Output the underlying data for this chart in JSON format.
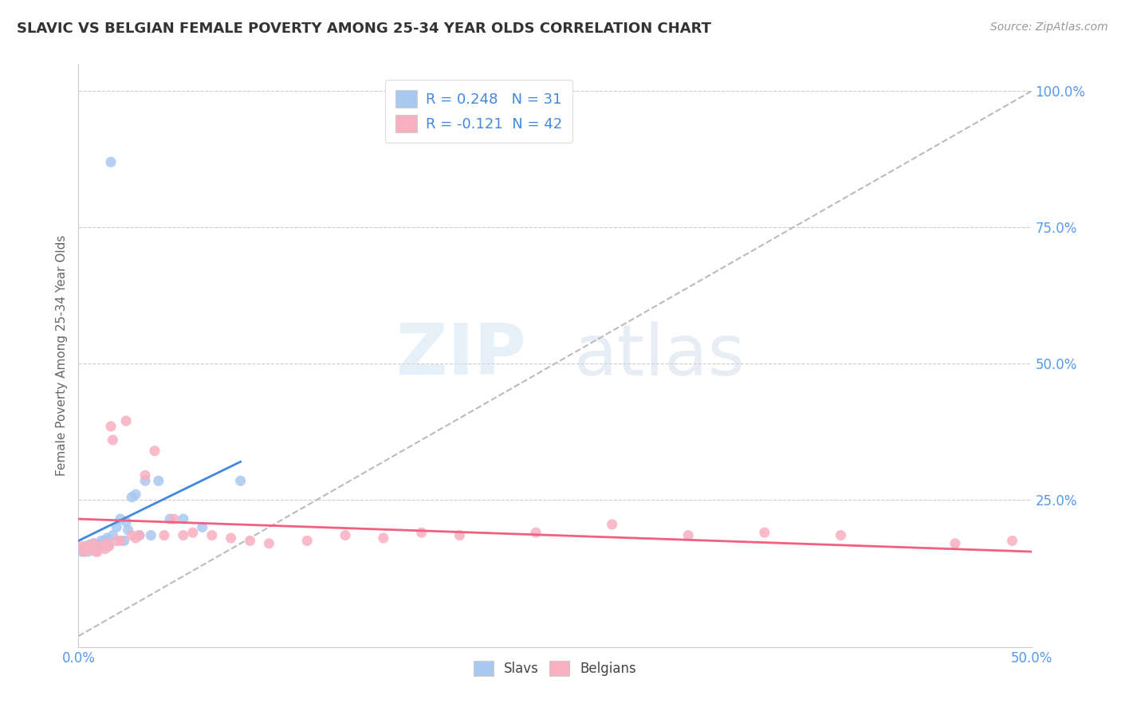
{
  "title": "SLAVIC VS BELGIAN FEMALE POVERTY AMONG 25-34 YEAR OLDS CORRELATION CHART",
  "source": "Source: ZipAtlas.com",
  "ylabel": "Female Poverty Among 25-34 Year Olds",
  "xlim": [
    0.0,
    0.5
  ],
  "ylim": [
    -0.02,
    1.05
  ],
  "xticks": [
    0.0,
    0.1,
    0.2,
    0.3,
    0.4,
    0.5
  ],
  "xticklabels": [
    "0.0%",
    "",
    "",
    "",
    "",
    "50.0%"
  ],
  "yticks_left": [],
  "yticks_right": [
    0.25,
    0.5,
    0.75,
    1.0
  ],
  "yticklabels_right": [
    "25.0%",
    "50.0%",
    "75.0%",
    "100.0%"
  ],
  "slavs_R": 0.248,
  "slavs_N": 31,
  "belgians_R": -0.121,
  "belgians_N": 42,
  "slavs_color": "#a8c8f0",
  "belgians_color": "#f8b0c0",
  "slavs_line_color": "#4488dd",
  "belgians_line_color": "#f06080",
  "background_color": "#ffffff",
  "watermark_zip": "ZIP",
  "watermark_atlas": "atlas",
  "slavs_x": [
    0.002,
    0.003,
    0.004,
    0.005,
    0.006,
    0.007,
    0.008,
    0.009,
    0.01,
    0.012,
    0.013,
    0.014,
    0.015,
    0.016,
    0.017,
    0.018,
    0.02,
    0.022,
    0.024,
    0.025,
    0.026,
    0.028,
    0.03,
    0.032,
    0.035,
    0.038,
    0.042,
    0.048,
    0.055,
    0.065,
    0.085
  ],
  "slavs_y": [
    0.155,
    0.16,
    0.165,
    0.155,
    0.168,
    0.162,
    0.17,
    0.165,
    0.168,
    0.175,
    0.165,
    0.175,
    0.18,
    0.168,
    0.87,
    0.185,
    0.2,
    0.215,
    0.175,
    0.21,
    0.195,
    0.255,
    0.26,
    0.185,
    0.285,
    0.185,
    0.285,
    0.215,
    0.215,
    0.2,
    0.285
  ],
  "belgians_x": [
    0.002,
    0.003,
    0.004,
    0.005,
    0.007,
    0.008,
    0.009,
    0.01,
    0.012,
    0.014,
    0.015,
    0.016,
    0.017,
    0.018,
    0.02,
    0.022,
    0.025,
    0.028,
    0.03,
    0.032,
    0.035,
    0.04,
    0.045,
    0.05,
    0.055,
    0.06,
    0.07,
    0.08,
    0.09,
    0.1,
    0.12,
    0.14,
    0.16,
    0.18,
    0.2,
    0.24,
    0.28,
    0.32,
    0.36,
    0.4,
    0.46,
    0.49
  ],
  "belgians_y": [
    0.165,
    0.155,
    0.16,
    0.165,
    0.16,
    0.17,
    0.155,
    0.155,
    0.165,
    0.16,
    0.17,
    0.165,
    0.385,
    0.36,
    0.175,
    0.175,
    0.395,
    0.185,
    0.18,
    0.185,
    0.295,
    0.34,
    0.185,
    0.215,
    0.185,
    0.19,
    0.185,
    0.18,
    0.175,
    0.17,
    0.175,
    0.185,
    0.18,
    0.19,
    0.185,
    0.19,
    0.205,
    0.185,
    0.19,
    0.185,
    0.17,
    0.175
  ],
  "slavs_trend_x": [
    0.0,
    0.085
  ],
  "slavs_trend_y_start": 0.175,
  "slavs_trend_y_end": 0.32,
  "belgians_trend_x": [
    0.0,
    0.5
  ],
  "belgians_trend_y_start": 0.215,
  "belgians_trend_y_end": 0.155,
  "diag_line_x": [
    0.0,
    0.5
  ],
  "diag_line_y": [
    0.0,
    1.0
  ]
}
